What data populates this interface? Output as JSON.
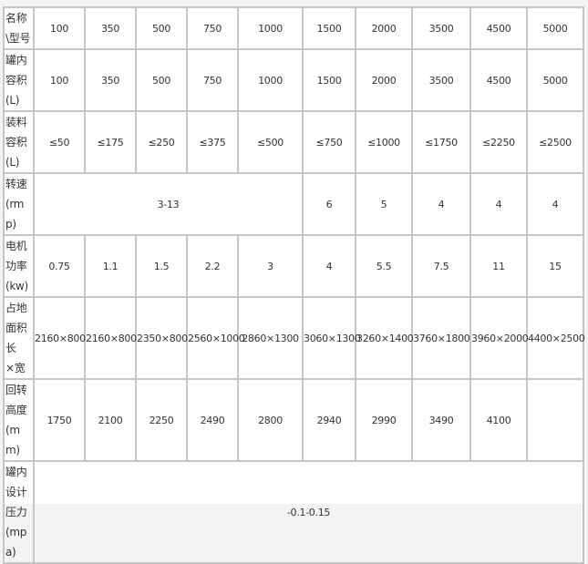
{
  "table": {
    "rows": [
      {
        "header": [
          "名称",
          "\\型号"
        ],
        "cells": [
          [
            "100",
            1
          ],
          [
            "350",
            1
          ],
          [
            "500",
            1
          ],
          [
            "750",
            1
          ],
          [
            "1000",
            1
          ],
          [
            "1500",
            1
          ],
          [
            "2000",
            1
          ],
          [
            "3500",
            1
          ],
          [
            "4500",
            1
          ],
          [
            "5000",
            1
          ]
        ]
      },
      {
        "header": [
          "罐内",
          "容积",
          "(L)"
        ],
        "cells": [
          [
            "100",
            1
          ],
          [
            "350",
            1
          ],
          [
            "500",
            1
          ],
          [
            "750",
            1
          ],
          [
            "1000",
            1
          ],
          [
            "1500",
            1
          ],
          [
            "2000",
            1
          ],
          [
            "3500",
            1
          ],
          [
            "4500",
            1
          ],
          [
            "5000",
            1
          ]
        ]
      },
      {
        "header": [
          "装料",
          "容积",
          "(L)"
        ],
        "cells": [
          [
            "≤50",
            1
          ],
          [
            "≤175",
            1
          ],
          [
            "≤250",
            1
          ],
          [
            "≤375",
            1
          ],
          [
            "≤500",
            1
          ],
          [
            "≤750",
            1
          ],
          [
            "≤1000",
            1
          ],
          [
            "≤1750",
            1
          ],
          [
            "≤2250",
            1
          ],
          [
            "≤2500",
            1
          ]
        ]
      },
      {
        "header": [
          "转速",
          "(rmp)"
        ],
        "cells": [
          [
            "3-13",
            5
          ],
          [
            "6",
            1
          ],
          [
            "5",
            1
          ],
          [
            "4",
            1
          ],
          [
            "4",
            1
          ],
          [
            "4",
            1
          ]
        ]
      },
      {
        "header": [
          "电机",
          "功率",
          "(kw)"
        ],
        "cells": [
          [
            "0.75",
            1
          ],
          [
            "1.1",
            1
          ],
          [
            "1.5",
            1
          ],
          [
            "2.2",
            1
          ],
          [
            "3",
            1
          ],
          [
            "4",
            1
          ],
          [
            "5.5",
            1
          ],
          [
            "7.5",
            1
          ],
          [
            "11",
            1
          ],
          [
            "15",
            1
          ]
        ]
      },
      {
        "header": [
          "占地",
          "面积",
          "长",
          "×宽"
        ],
        "cells": [
          [
            "2160×800",
            1
          ],
          [
            "2160×800",
            1
          ],
          [
            "2350×800",
            1
          ],
          [
            "2560×1000",
            1
          ],
          [
            "2860×1300",
            1
          ],
          [
            "3060×1300",
            1
          ],
          [
            "3260×1400",
            1
          ],
          [
            "3760×1800",
            1
          ],
          [
            "3960×2000",
            1
          ],
          [
            "4400×2500",
            1
          ]
        ]
      },
      {
        "header": [
          "回转",
          "高度",
          "(mm)"
        ],
        "cells": [
          [
            "1750",
            1
          ],
          [
            "2100",
            1
          ],
          [
            "2250",
            1
          ],
          [
            "2490",
            1
          ],
          [
            "2800",
            1
          ],
          [
            "2940",
            1
          ],
          [
            "2990",
            1
          ],
          [
            "3490",
            1
          ],
          [
            "4100",
            1
          ],
          [
            "",
            1
          ]
        ]
      },
      {
        "header": [
          "罐内",
          "设计",
          "压力",
          "(mpa)"
        ],
        "cells": [
          [
            "-0.1-0.15",
            10
          ]
        ]
      }
    ]
  }
}
